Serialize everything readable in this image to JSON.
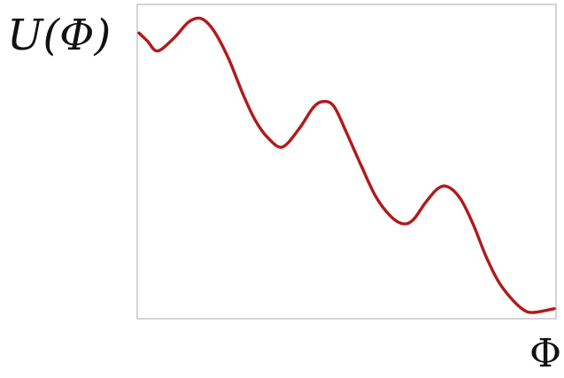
{
  "chart_data": {
    "type": "line",
    "xlabel": "Φ",
    "ylabel": "U(Φ)",
    "grid": false,
    "series": [
      {
        "color": "#b11a1a",
        "points": [
          [
            0.0,
            0.951
          ],
          [
            0.02,
            0.924
          ],
          [
            0.045,
            0.89
          ],
          [
            0.085,
            0.935
          ],
          [
            0.12,
            0.989
          ],
          [
            0.15,
            1.0
          ],
          [
            0.18,
            0.959
          ],
          [
            0.215,
            0.866
          ],
          [
            0.25,
            0.744
          ],
          [
            0.28,
            0.654
          ],
          [
            0.31,
            0.595
          ],
          [
            0.345,
            0.563
          ],
          [
            0.385,
            0.624
          ],
          [
            0.42,
            0.698
          ],
          [
            0.445,
            0.718
          ],
          [
            0.47,
            0.7
          ],
          [
            0.5,
            0.611
          ],
          [
            0.535,
            0.5
          ],
          [
            0.57,
            0.395
          ],
          [
            0.605,
            0.329
          ],
          [
            0.635,
            0.302
          ],
          [
            0.66,
            0.315
          ],
          [
            0.69,
            0.374
          ],
          [
            0.72,
            0.422
          ],
          [
            0.745,
            0.427
          ],
          [
            0.775,
            0.385
          ],
          [
            0.805,
            0.299
          ],
          [
            0.835,
            0.193
          ],
          [
            0.865,
            0.107
          ],
          [
            0.895,
            0.05
          ],
          [
            0.925,
            0.01
          ],
          [
            0.95,
            0.0
          ],
          [
            1.0,
            0.013
          ]
        ]
      }
    ]
  }
}
